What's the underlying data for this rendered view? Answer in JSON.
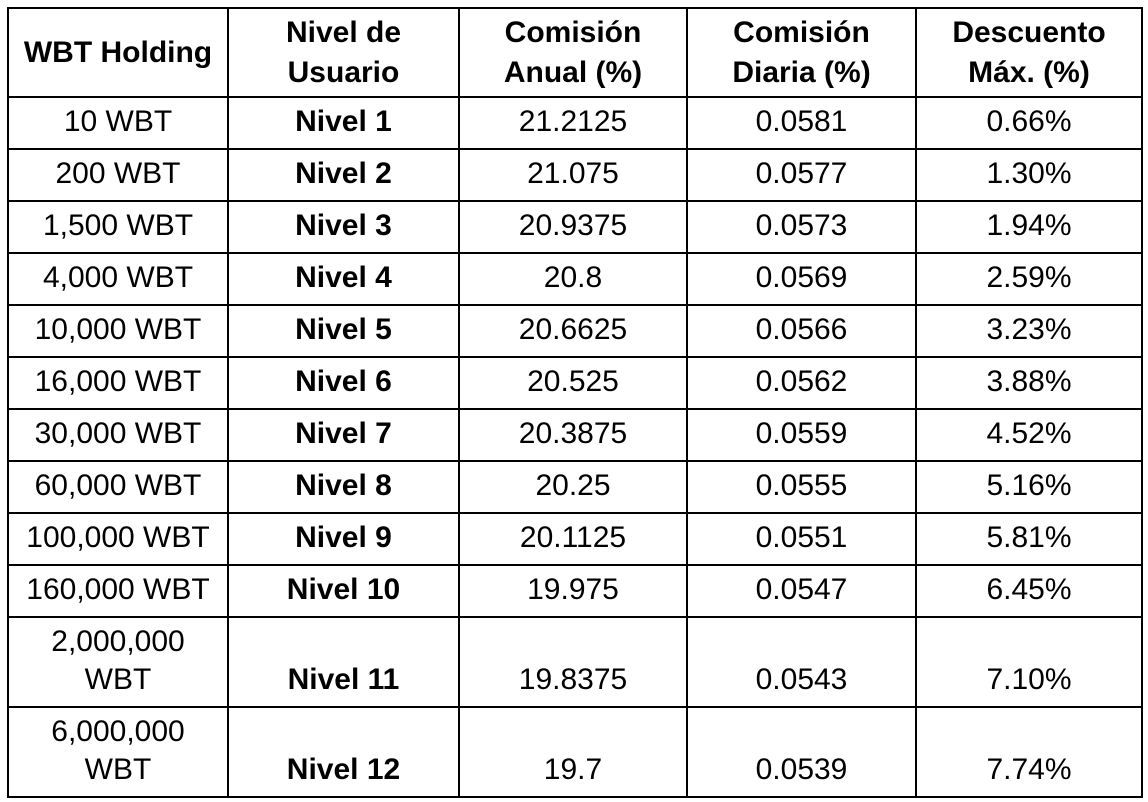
{
  "table": {
    "headers": [
      "WBT Holding",
      "Nivel de Usuario",
      "Comisión Anual (%)",
      "Comisión Diaria (%)",
      "Descuento Máx. (%)"
    ],
    "rows": [
      [
        "10 WBT",
        "Nivel 1",
        "21.2125",
        "0.0581",
        "0.66%"
      ],
      [
        "200 WBT",
        "Nivel 2",
        "21.075",
        "0.0577",
        "1.30%"
      ],
      [
        "1,500 WBT",
        "Nivel 3",
        "20.9375",
        "0.0573",
        "1.94%"
      ],
      [
        "4,000 WBT",
        "Nivel 4",
        "20.8",
        "0.0569",
        "2.59%"
      ],
      [
        "10,000 WBT",
        "Nivel 5",
        "20.6625",
        "0.0566",
        "3.23%"
      ],
      [
        "16,000 WBT",
        "Nivel 6",
        "20.525",
        "0.0562",
        "3.88%"
      ],
      [
        "30,000 WBT",
        "Nivel 7",
        "20.3875",
        "0.0559",
        "4.52%"
      ],
      [
        "60,000 WBT",
        "Nivel 8",
        "20.25",
        "0.0555",
        "5.16%"
      ],
      [
        "100,000 WBT",
        "Nivel 9",
        "20.1125",
        "0.0551",
        "5.81%"
      ],
      [
        "160,000 WBT",
        "Nivel 10",
        "19.975",
        "0.0547",
        "6.45%"
      ],
      [
        "2,000,000 WBT",
        "Nivel 11",
        "19.8375",
        "0.0543",
        "7.10%"
      ],
      [
        "6,000,000 WBT",
        "Nivel 12",
        "19.7",
        "0.0539",
        "7.74%"
      ]
    ]
  }
}
